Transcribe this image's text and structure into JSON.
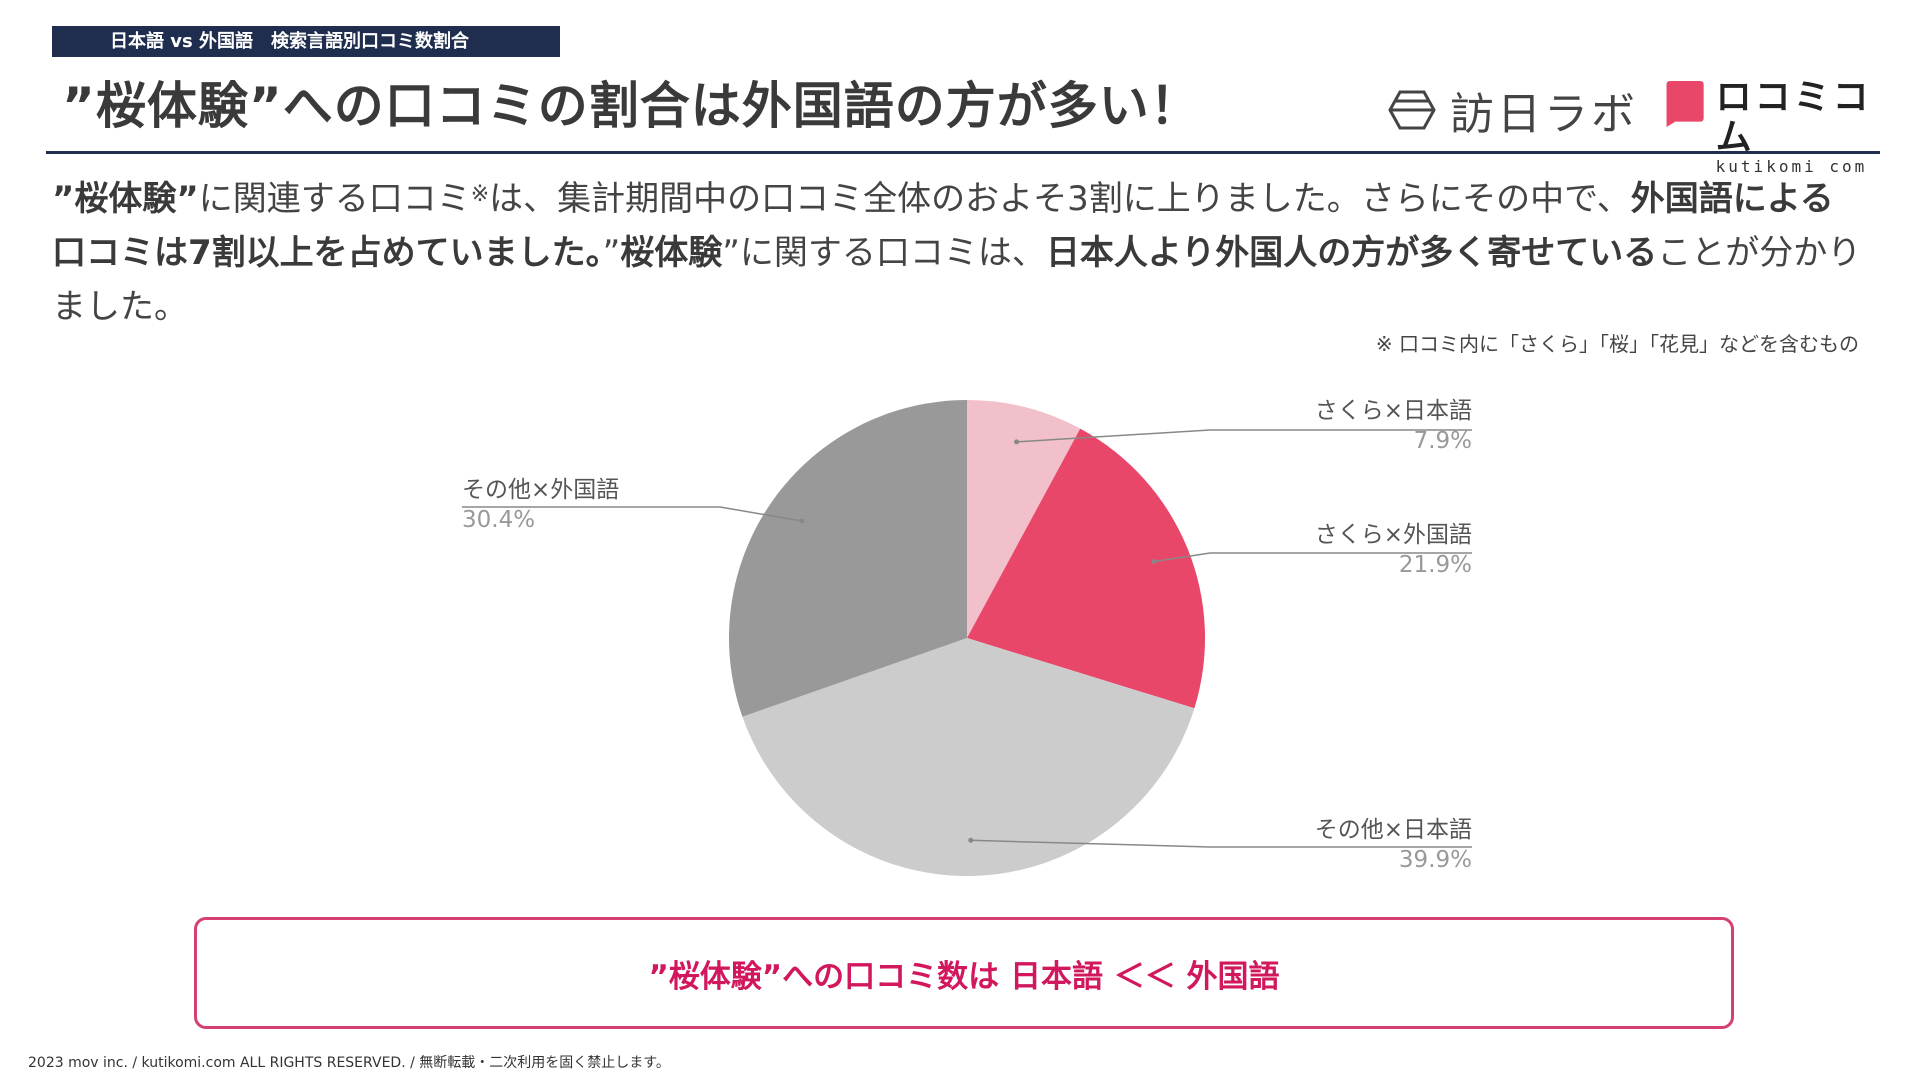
{
  "header": {
    "tag": "日本語 vs 外国語　検索言語別口コミ数割合",
    "title": "”桜体験”への口コミの割合は外国語の方が多い！"
  },
  "logos": {
    "houniti": "訪日ラボ",
    "kuchikomi_main": "ロコミコム",
    "kuchikomi_sub": "kutikomi com",
    "kuchikomi_color": "#e8476a"
  },
  "body": {
    "s1": "”桜体験”",
    "s2": "に関連する口コミ",
    "sup": "※",
    "s3": "は、集計期間中の口コミ全体のおよそ3割に上りました。さらにその中で、",
    "s4": "外国語による口コミは7割以上を占めていました。",
    "s5": "”",
    "s6": "桜体験",
    "s7": "”に関する口コミは、",
    "s8": "日本人より外国人の方が多く寄せている",
    "s9": "ことが分かりました。"
  },
  "note": "※ 口コミ内に「さくら」「桜」「花見」などを含むもの",
  "chart_data": {
    "type": "pie",
    "start": "12 o'clock, clockwise",
    "slices": [
      {
        "label": "さくら×日本語",
        "value": 7.9,
        "display": "7.9%",
        "color": "#f2c0cb"
      },
      {
        "label": "さくら×外国語",
        "value": 21.9,
        "display": "21.9%",
        "color": "#e8476a"
      },
      {
        "label": "その他×日本語",
        "value": 39.9,
        "display": "39.9%",
        "color": "#cccccc"
      },
      {
        "label": "その他×外国語",
        "value": 30.4,
        "display": "30.4%",
        "color": "#999999"
      }
    ]
  },
  "conclusion": "”桜体験”への口コミ数は 日本語 ＜＜ 外国語",
  "footer": "2023 mov inc. / kutikomi.com ALL RIGHTS RESERVED. / 無断転載・二次利用を固く禁止します。"
}
